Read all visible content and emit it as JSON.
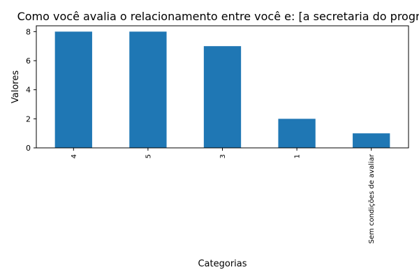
{
  "chart_data": {
    "type": "bar",
    "title": "Como você avalia o relacionamento entre você e: [a secretaria do progra",
    "xlabel": "Categorias",
    "ylabel": "Valores",
    "categories": [
      "4",
      "5",
      "3",
      "1",
      "Sem condições de avaliar"
    ],
    "values": [
      8,
      8,
      7,
      2,
      1
    ],
    "ylim": [
      0,
      8.4
    ],
    "yticks": [
      0,
      2,
      4,
      6,
      8
    ],
    "grid": false,
    "legend": false,
    "bar_color": "#1f77b4"
  }
}
